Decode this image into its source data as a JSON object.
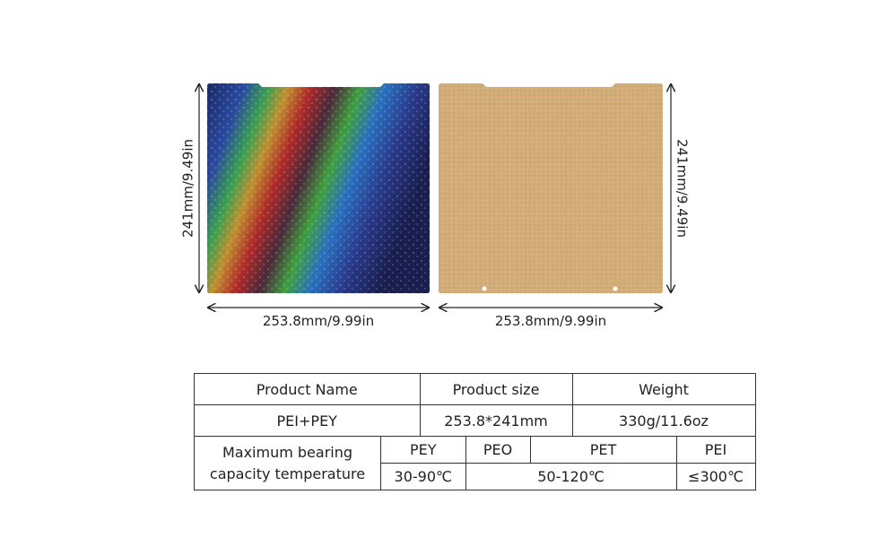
{
  "plates": [
    {
      "height_label": "241mm/9.49in",
      "width_label": "253.8mm/9.99in"
    },
    {
      "height_label": "241mm/9.49in",
      "width_label": "253.8mm/9.99in"
    }
  ],
  "table": {
    "header": [
      "Product Name",
      "Product size",
      "Weight"
    ],
    "row": [
      "PEI+PEY",
      "253.8*241mm",
      "330g/11.6oz"
    ],
    "temp_label": [
      "Maximum bearing",
      "capacity temperature"
    ],
    "materials": [
      "PEY",
      "PEO",
      "PET",
      "PEI"
    ],
    "temps": [
      "30-90℃",
      "50-120℃",
      "≤300℃"
    ]
  }
}
